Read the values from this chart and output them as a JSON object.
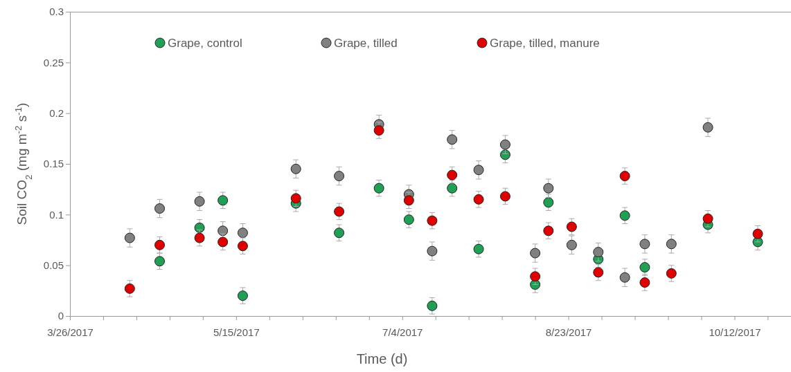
{
  "chart_data": {
    "type": "scatter",
    "xlabel": "Time (d)",
    "ylabel": "Soil CO$_{2}$ (mg m$^{-2}$ s$^{-1}$)",
    "x": [
      "2017-04-13",
      "2017-04-22",
      "2017-05-04",
      "2017-05-11",
      "2017-05-17",
      "2017-06-02",
      "2017-06-15",
      "2017-06-27",
      "2017-07-06",
      "2017-07-13",
      "2017-07-19",
      "2017-07-27",
      "2017-08-04",
      "2017-08-13",
      "2017-08-17",
      "2017-08-24",
      "2017-09-01",
      "2017-09-09",
      "2017-09-15",
      "2017-09-23",
      "2017-10-04",
      "2017-10-19"
    ],
    "series": [
      {
        "name": "Grape, control",
        "color": "#1fa055",
        "values": [
          null,
          0.054,
          0.087,
          0.114,
          0.02,
          0.111,
          0.082,
          0.126,
          0.095,
          0.01,
          0.126,
          0.066,
          0.159,
          0.031,
          0.112,
          null,
          0.056,
          0.099,
          0.048,
          null,
          0.09,
          0.073
        ],
        "errors": [
          null,
          0.008,
          0.008,
          0.008,
          0.008,
          0.008,
          0.008,
          0.008,
          0.008,
          0.008,
          0.008,
          0.008,
          0.008,
          0.008,
          0.008,
          null,
          0.008,
          0.008,
          0.008,
          null,
          0.008,
          0.008
        ]
      },
      {
        "name": "Grape, tilled",
        "color": "#808080",
        "values": [
          0.077,
          0.106,
          0.113,
          0.084,
          0.082,
          0.145,
          0.138,
          0.189,
          0.12,
          0.064,
          0.174,
          0.144,
          0.169,
          0.062,
          0.126,
          0.07,
          0.063,
          0.038,
          0.071,
          0.071,
          0.186,
          null
        ],
        "errors": [
          0.009,
          0.009,
          0.009,
          0.009,
          0.009,
          0.009,
          0.009,
          0.009,
          0.009,
          0.009,
          0.009,
          0.009,
          0.009,
          0.009,
          0.009,
          0.009,
          0.009,
          0.009,
          0.009,
          0.009,
          0.009,
          null
        ]
      },
      {
        "name": "Grape, tilled, manure",
        "color": "#e00000",
        "values": [
          0.027,
          0.07,
          0.077,
          0.073,
          0.069,
          0.116,
          0.103,
          0.183,
          0.114,
          0.094,
          0.139,
          0.115,
          0.118,
          0.039,
          0.084,
          0.088,
          0.043,
          0.138,
          0.033,
          0.042,
          0.096,
          0.081
        ],
        "errors": [
          0.008,
          0.008,
          0.008,
          0.008,
          0.008,
          0.008,
          0.008,
          0.008,
          0.008,
          0.008,
          0.008,
          0.008,
          0.008,
          0.008,
          0.008,
          0.008,
          0.008,
          0.008,
          0.008,
          0.008,
          0.008,
          0.008
        ]
      }
    ],
    "xlim": [
      "2017-03-26",
      "2017-10-29"
    ],
    "xticks": [
      {
        "value": "2017-03-26",
        "label": "3/26/2017"
      },
      {
        "value": "2017-04-05",
        "label": null
      },
      {
        "value": "2017-04-15",
        "label": null
      },
      {
        "value": "2017-04-25",
        "label": null
      },
      {
        "value": "2017-05-05",
        "label": null
      },
      {
        "value": "2017-05-15",
        "label": "5/15/2017"
      },
      {
        "value": "2017-05-25",
        "label": null
      },
      {
        "value": "2017-06-04",
        "label": null
      },
      {
        "value": "2017-06-14",
        "label": null
      },
      {
        "value": "2017-06-24",
        "label": null
      },
      {
        "value": "2017-07-04",
        "label": "7/4/2017"
      },
      {
        "value": "2017-07-14",
        "label": null
      },
      {
        "value": "2017-07-24",
        "label": null
      },
      {
        "value": "2017-08-03",
        "label": null
      },
      {
        "value": "2017-08-13",
        "label": null
      },
      {
        "value": "2017-08-23",
        "label": "8/23/2017"
      },
      {
        "value": "2017-09-02",
        "label": null
      },
      {
        "value": "2017-09-12",
        "label": null
      },
      {
        "value": "2017-09-22",
        "label": null
      },
      {
        "value": "2017-10-02",
        "label": null
      },
      {
        "value": "2017-10-12",
        "label": "10/12/2017"
      },
      {
        "value": "2017-10-22",
        "label": null
      }
    ],
    "ylim": [
      0,
      0.3
    ],
    "yticks": [
      0,
      0.05,
      0.1,
      0.15,
      0.2,
      0.25,
      0.3
    ],
    "grid": false,
    "legend": "top",
    "marker": "circle"
  }
}
